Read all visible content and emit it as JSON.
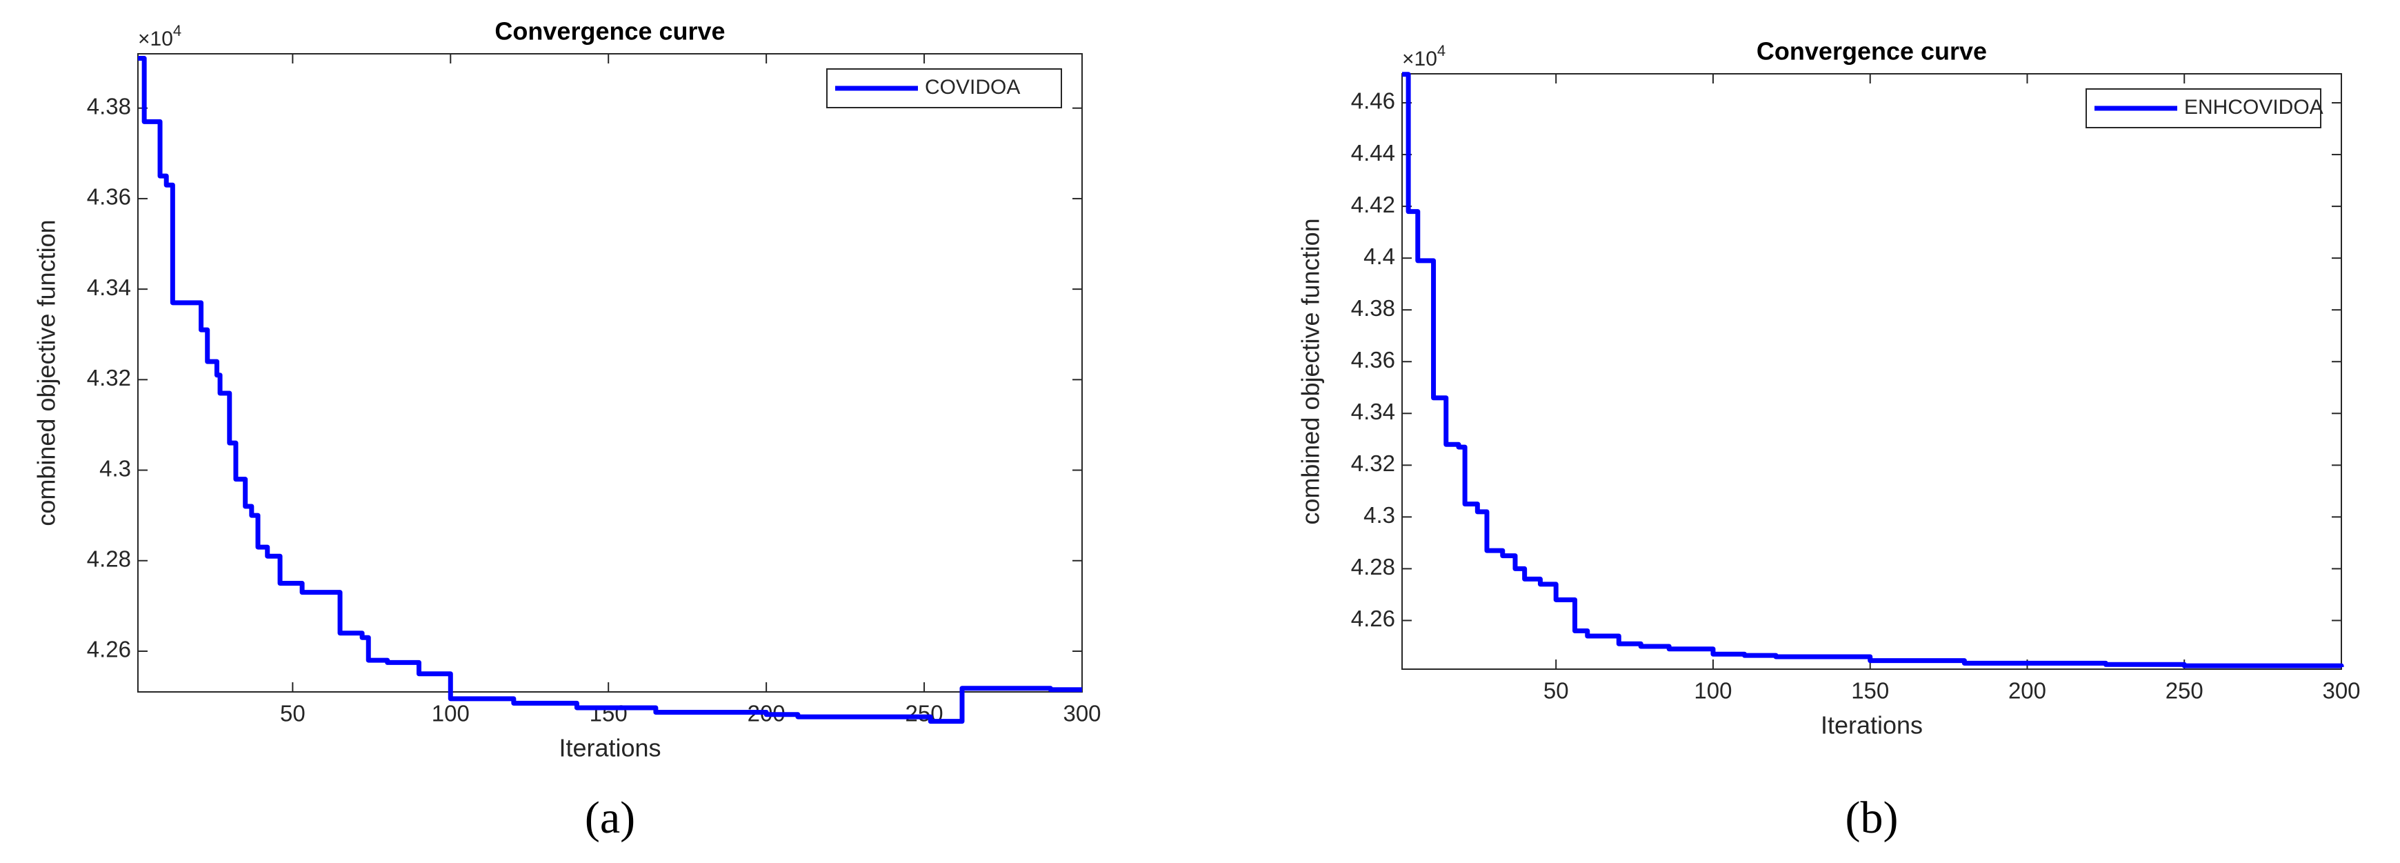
{
  "chart_data": [
    {
      "type": "line",
      "title": "Convergence curve",
      "xlabel": "Iterations",
      "ylabel": "combined objective function",
      "yscale": {
        "base": "×10",
        "exponent": "4"
      },
      "caption": "(a)",
      "step": true,
      "legend": "upper right",
      "xlim": [
        1,
        300
      ],
      "xticks": [
        50,
        100,
        150,
        200,
        250,
        300
      ],
      "ylim": [
        4.251,
        4.392
      ],
      "yticks": [
        4.26,
        4.28,
        4.3,
        4.32,
        4.34,
        4.36,
        4.38
      ],
      "x": [
        1,
        3,
        8,
        10,
        12,
        20,
        21,
        23,
        26,
        27,
        30,
        32,
        35,
        37,
        39,
        42,
        46,
        53,
        65,
        72,
        74,
        80,
        90,
        100,
        120,
        140,
        165,
        200,
        210,
        252,
        262,
        290,
        300
      ],
      "series": [
        {
          "name": "COVIDOA",
          "color": "#0000ff",
          "values": [
            4.391,
            4.377,
            4.365,
            4.363,
            4.337,
            4.337,
            4.331,
            4.324,
            4.321,
            4.317,
            4.306,
            4.298,
            4.292,
            4.29,
            4.283,
            4.281,
            4.275,
            4.273,
            4.264,
            4.263,
            4.258,
            4.2575,
            4.255,
            4.2495,
            4.2485,
            4.2475,
            4.2465,
            4.246,
            4.2455,
            4.2445,
            4.2518,
            4.2515,
            4.2515
          ]
        }
      ]
    },
    {
      "type": "line",
      "title": "Convergence curve",
      "xlabel": "Iterations",
      "ylabel": "combined objective function",
      "yscale": {
        "base": "×10",
        "exponent": "4"
      },
      "caption": "(b)",
      "step": true,
      "legend": "upper right",
      "xlim": [
        1,
        300
      ],
      "xticks": [
        50,
        100,
        150,
        200,
        250,
        300
      ],
      "ylim": [
        4.2412,
        4.4712
      ],
      "yticks": [
        4.26,
        4.28,
        4.3,
        4.32,
        4.34,
        4.36,
        4.38,
        4.4,
        4.42,
        4.44,
        4.46
      ],
      "x": [
        1,
        3,
        6,
        11,
        15,
        19,
        21,
        25,
        28,
        33,
        37,
        40,
        45,
        50,
        56,
        60,
        70,
        77,
        86,
        100,
        110,
        120,
        150,
        180,
        225,
        250,
        300
      ],
      "series": [
        {
          "name": "ENHCOVIDOA",
          "color": "#0000ff",
          "values": [
            4.471,
            4.418,
            4.399,
            4.346,
            4.328,
            4.327,
            4.305,
            4.302,
            4.287,
            4.285,
            4.28,
            4.276,
            4.274,
            4.268,
            4.256,
            4.254,
            4.251,
            4.25,
            4.249,
            4.247,
            4.2465,
            4.246,
            4.2445,
            4.2435,
            4.243,
            4.2425,
            4.242
          ]
        }
      ]
    }
  ]
}
